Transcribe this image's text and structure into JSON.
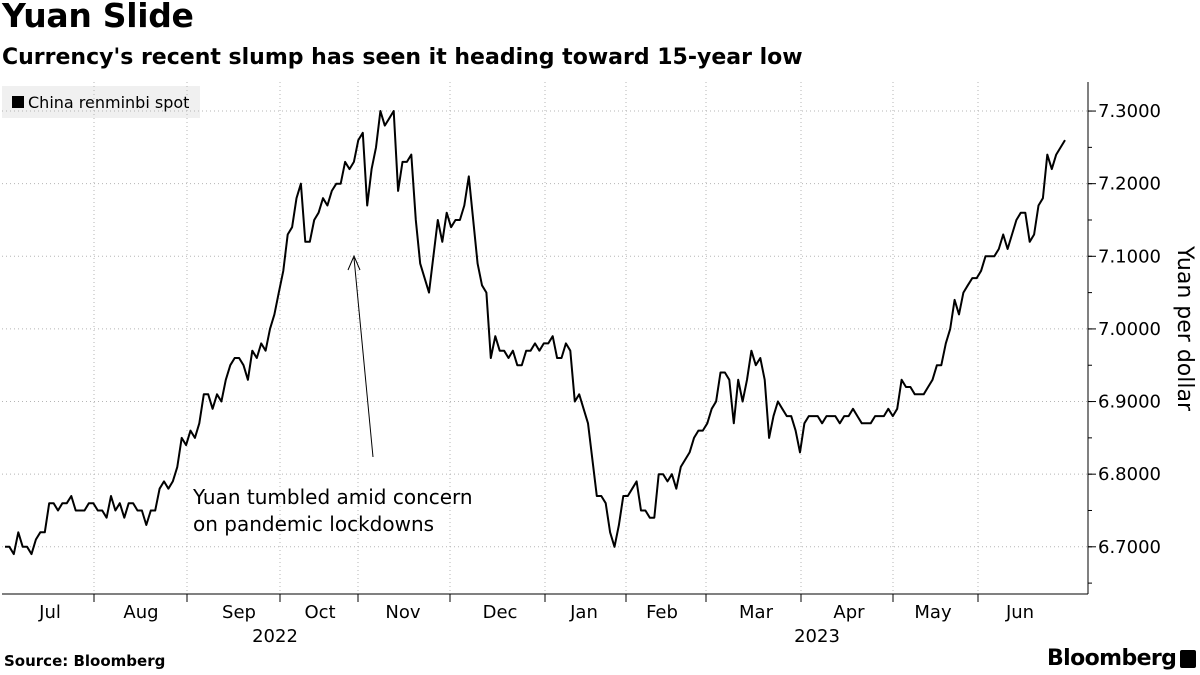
{
  "chart_data": {
    "type": "line",
    "title": "Yuan Slide",
    "subtitle": "Currency's recent slump has seen it heading toward 15-year low",
    "ylabel": "Yuan per dollar",
    "ylim": [
      6.635,
      7.34
    ],
    "yticks": [
      "7.3000",
      "7.2000",
      "7.1000",
      "7.0000",
      "6.9000",
      "6.8000",
      "6.7000"
    ],
    "xticks": [
      "Jul",
      "Aug",
      "Sep",
      "Oct",
      "Nov",
      "Dec",
      "Jan",
      "Feb",
      "Mar",
      "Apr",
      "May",
      "Jun"
    ],
    "year_labels": [
      "2022",
      "2023"
    ],
    "grid": true,
    "legend_position": "top-left",
    "series": [
      {
        "name": "China renminbi spot",
        "color": "#000000",
        "values": [
          6.7,
          6.7,
          6.69,
          6.72,
          6.7,
          6.7,
          6.69,
          6.71,
          6.72,
          6.72,
          6.76,
          6.76,
          6.75,
          6.76,
          6.76,
          6.77,
          6.75,
          6.75,
          6.75,
          6.76,
          6.76,
          6.75,
          6.75,
          6.74,
          6.77,
          6.75,
          6.76,
          6.74,
          6.76,
          6.76,
          6.75,
          6.75,
          6.73,
          6.75,
          6.75,
          6.78,
          6.79,
          6.78,
          6.79,
          6.81,
          6.85,
          6.84,
          6.86,
          6.85,
          6.87,
          6.91,
          6.91,
          6.89,
          6.91,
          6.9,
          6.93,
          6.95,
          6.96,
          6.96,
          6.95,
          6.93,
          6.97,
          6.96,
          6.98,
          6.97,
          7.0,
          7.02,
          7.05,
          7.08,
          7.13,
          7.14,
          7.18,
          7.2,
          7.12,
          7.12,
          7.15,
          7.16,
          7.18,
          7.17,
          7.19,
          7.2,
          7.2,
          7.23,
          7.22,
          7.23,
          7.26,
          7.27,
          7.17,
          7.22,
          7.25,
          7.3,
          7.28,
          7.29,
          7.3,
          7.19,
          7.23,
          7.23,
          7.24,
          7.15,
          7.09,
          7.07,
          7.05,
          7.1,
          7.15,
          7.12,
          7.16,
          7.14,
          7.15,
          7.15,
          7.17,
          7.21,
          7.15,
          7.09,
          7.06,
          7.05,
          6.96,
          6.99,
          6.97,
          6.97,
          6.96,
          6.97,
          6.95,
          6.95,
          6.97,
          6.97,
          6.98,
          6.97,
          6.98,
          6.98,
          6.99,
          6.96,
          6.96,
          6.98,
          6.97,
          6.9,
          6.91,
          6.89,
          6.87,
          6.82,
          6.77,
          6.77,
          6.76,
          6.72,
          6.7,
          6.73,
          6.77,
          6.77,
          6.78,
          6.79,
          6.75,
          6.75,
          6.74,
          6.74,
          6.8,
          6.8,
          6.79,
          6.8,
          6.78,
          6.81,
          6.82,
          6.83,
          6.85,
          6.86,
          6.86,
          6.87,
          6.89,
          6.9,
          6.94,
          6.94,
          6.93,
          6.87,
          6.93,
          6.9,
          6.93,
          6.97,
          6.95,
          6.96,
          6.93,
          6.85,
          6.88,
          6.9,
          6.89,
          6.88,
          6.88,
          6.86,
          6.83,
          6.87,
          6.88,
          6.88,
          6.88,
          6.87,
          6.88,
          6.88,
          6.88,
          6.87,
          6.88,
          6.88,
          6.89,
          6.88,
          6.87,
          6.87,
          6.87,
          6.88,
          6.88,
          6.88,
          6.89,
          6.88,
          6.89,
          6.93,
          6.92,
          6.92,
          6.91,
          6.91,
          6.91,
          6.92,
          6.93,
          6.95,
          6.95,
          6.98,
          7.0,
          7.04,
          7.02,
          7.05,
          7.06,
          7.07,
          7.07,
          7.08,
          7.1,
          7.1,
          7.1,
          7.11,
          7.13,
          7.11,
          7.13,
          7.15,
          7.16,
          7.16,
          7.12,
          7.13,
          7.17,
          7.18,
          7.24,
          7.22,
          7.24,
          7.25,
          7.26
        ]
      }
    ],
    "annotation": {
      "line1": "Yuan tumbled amid concern",
      "line2": "on pandemic lockdowns",
      "points_to_index": 88
    }
  },
  "footer": {
    "source": "Source: Bloomberg",
    "brand": "Bloomberg"
  }
}
